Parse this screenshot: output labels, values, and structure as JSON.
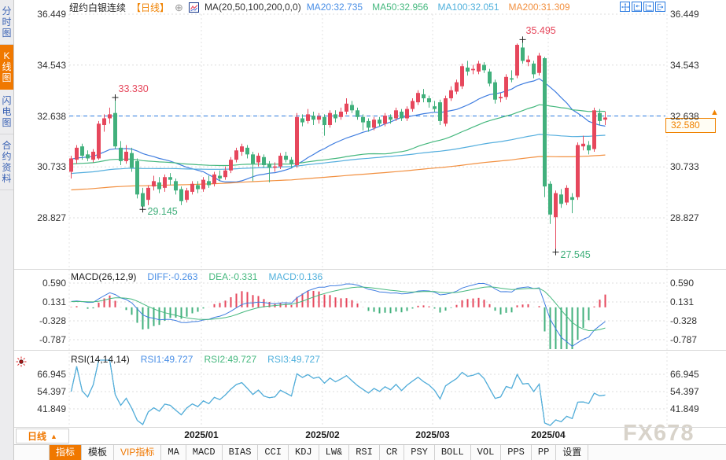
{
  "header": {
    "symbol": "纽约白银连续",
    "period_tag": "【日线】",
    "add_icon_glyph": "⊕",
    "ma_formula": "MA(20,50,100,200,0,0)",
    "ma_values": [
      {
        "text": "MA20:32.735",
        "color": "#4a8fe6"
      },
      {
        "text": "MA50:32.956",
        "color": "#45b87e"
      },
      {
        "text": "MA100:32.051",
        "color": "#4fb0dc"
      },
      {
        "text": "MA200:31.309",
        "color": "#f29040"
      }
    ],
    "window_icons": [
      "crosshair-icon",
      "compress-icon",
      "expand-icon",
      "pan-right-icon"
    ]
  },
  "sidebar": {
    "tabs": [
      {
        "label": "分时图",
        "active": false
      },
      {
        "label": "K线图",
        "active": true
      },
      {
        "label": "闪电图",
        "active": false
      },
      {
        "label": "合约资料",
        "active": false
      }
    ]
  },
  "main_chart": {
    "y_ticks": [
      "36.449",
      "34.543",
      "32.638",
      "30.733",
      "28.827"
    ],
    "last_price": "32.580",
    "arrow_glyph": "▲"
  },
  "macd_panel": {
    "title": "MACD(26,12,9)",
    "values": [
      {
        "text": "DIFF:-0.263",
        "color": "#4a8fe6"
      },
      {
        "text": "DEA:-0.331",
        "color": "#45b87e"
      },
      {
        "text": "MACD:0.136",
        "color": "#4fb0dc"
      }
    ],
    "y_ticks": [
      "0.590",
      "0.131",
      "-0.328",
      "-0.787"
    ]
  },
  "rsi_panel": {
    "title": "RSI(14,14,14)",
    "values": [
      {
        "text": "RSI1:49.727",
        "color": "#4a8fe6"
      },
      {
        "text": "RSI2:49.727",
        "color": "#45b87e"
      },
      {
        "text": "RSI3:49.727",
        "color": "#4fb0dc"
      }
    ],
    "y_ticks": [
      "66.945",
      "54.397",
      "41.849"
    ]
  },
  "x_axis": {
    "period_label": "日线",
    "dropdown_glyph": "▲",
    "dates": [
      "2025/01",
      "2025/02",
      "2025/03",
      "2025/04"
    ]
  },
  "toolbar": {
    "items": [
      {
        "label": "指标",
        "state": "active"
      },
      {
        "label": "模板"
      },
      {
        "label": "VIP指标",
        "state": "vip"
      },
      {
        "label": "MA"
      },
      {
        "label": "MACD"
      },
      {
        "label": "BIAS"
      },
      {
        "label": "CCI"
      },
      {
        "label": "KDJ"
      },
      {
        "label": "LW&"
      },
      {
        "label": "RSI"
      },
      {
        "label": "CR"
      },
      {
        "label": "PSY"
      },
      {
        "label": "BOLL"
      },
      {
        "label": "VOL"
      },
      {
        "label": "PPS"
      },
      {
        "label": "PP"
      },
      {
        "label": "设置"
      }
    ]
  },
  "watermark": "FX678",
  "colors": {
    "up": "#e6475c",
    "down": "#41b07c",
    "ma20": "#3f7de0",
    "ma50": "#45b87e",
    "ma100": "#54aede",
    "ma200": "#f29040",
    "accent": "#f07800",
    "price_line": "#2a7ae0",
    "grid": "#dcdcdc"
  },
  "chart_data": {
    "type": "candlestick",
    "title": "纽约白银连续 日线",
    "x_labels": [
      "2025/01",
      "2025/02",
      "2025/03",
      "2025/04"
    ],
    "month_start_indices": [
      24,
      46,
      66,
      87
    ],
    "y_axis_main": [
      36.449,
      34.543,
      32.638,
      30.733,
      28.827
    ],
    "candles_ohlc": [
      [
        30.55,
        31.15,
        30.3,
        31.05
      ],
      [
        31.0,
        31.55,
        30.85,
        31.45
      ],
      [
        31.5,
        31.6,
        31.0,
        31.15
      ],
      [
        31.2,
        31.35,
        30.95,
        31.05
      ],
      [
        31.0,
        31.4,
        30.9,
        31.3
      ],
      [
        31.05,
        32.45,
        31.0,
        32.35
      ],
      [
        32.3,
        32.7,
        32.05,
        32.55
      ],
      [
        32.55,
        32.95,
        32.35,
        32.7
      ],
      [
        32.75,
        33.33,
        31.4,
        31.5
      ],
      [
        31.45,
        31.7,
        30.8,
        30.95
      ],
      [
        30.95,
        31.55,
        30.85,
        31.3
      ],
      [
        31.25,
        31.45,
        30.55,
        30.7
      ],
      [
        30.95,
        31.05,
        29.55,
        29.7
      ],
      [
        29.75,
        29.95,
        29.145,
        29.25
      ],
      [
        29.5,
        30.05,
        29.3,
        29.95
      ],
      [
        30.0,
        30.4,
        29.85,
        30.2
      ],
      [
        30.15,
        30.35,
        29.75,
        29.9
      ],
      [
        29.95,
        30.45,
        29.8,
        30.35
      ],
      [
        30.35,
        30.5,
        30.05,
        30.25
      ],
      [
        30.2,
        30.3,
        29.7,
        29.85
      ],
      [
        29.9,
        30.0,
        29.3,
        29.45
      ],
      [
        29.5,
        29.95,
        29.4,
        29.85
      ],
      [
        29.8,
        30.2,
        29.7,
        30.1
      ],
      [
        30.05,
        30.2,
        29.75,
        29.9
      ],
      [
        29.9,
        30.35,
        29.8,
        30.25
      ],
      [
        30.2,
        30.4,
        29.95,
        30.05
      ],
      [
        30.1,
        30.55,
        30.0,
        30.45
      ],
      [
        30.4,
        30.6,
        30.2,
        30.3
      ],
      [
        30.35,
        30.75,
        30.25,
        30.6
      ],
      [
        30.6,
        31.1,
        30.5,
        31.0
      ],
      [
        31.0,
        31.45,
        30.9,
        31.35
      ],
      [
        31.3,
        31.6,
        31.15,
        31.5
      ],
      [
        31.45,
        31.55,
        31.05,
        31.2
      ],
      [
        31.2,
        31.3,
        30.2,
        30.85
      ],
      [
        30.9,
        31.25,
        30.75,
        31.15
      ],
      [
        31.1,
        31.2,
        30.7,
        30.8
      ],
      [
        30.85,
        30.95,
        30.15,
        30.7
      ],
      [
        30.7,
        30.9,
        30.55,
        30.75
      ],
      [
        30.75,
        31.25,
        30.65,
        31.15
      ],
      [
        31.15,
        31.3,
        30.9,
        31.0
      ],
      [
        31.0,
        31.1,
        30.7,
        30.85
      ],
      [
        30.8,
        32.75,
        30.7,
        32.6
      ],
      [
        32.55,
        32.7,
        32.25,
        32.4
      ],
      [
        32.45,
        32.9,
        32.35,
        32.7
      ],
      [
        32.65,
        32.8,
        32.3,
        32.5
      ],
      [
        32.5,
        32.75,
        32.35,
        32.62
      ],
      [
        32.6,
        32.7,
        31.9,
        32.3
      ],
      [
        32.3,
        32.85,
        32.2,
        32.75
      ],
      [
        32.7,
        32.85,
        32.4,
        32.55
      ],
      [
        32.6,
        32.95,
        32.5,
        32.8
      ],
      [
        32.8,
        33.3,
        32.7,
        33.1
      ],
      [
        33.05,
        33.2,
        32.75,
        32.85
      ],
      [
        32.85,
        32.95,
        32.5,
        32.6
      ],
      [
        32.6,
        32.7,
        32.1,
        32.4
      ],
      [
        32.45,
        32.55,
        32.05,
        32.2
      ],
      [
        32.2,
        32.6,
        32.1,
        32.5
      ],
      [
        32.5,
        32.6,
        32.25,
        32.35
      ],
      [
        32.35,
        32.75,
        32.25,
        32.65
      ],
      [
        32.6,
        32.7,
        32.35,
        32.5
      ],
      [
        32.55,
        32.95,
        32.45,
        32.85
      ],
      [
        32.8,
        32.9,
        32.45,
        32.55
      ],
      [
        32.55,
        33.0,
        32.45,
        32.9
      ],
      [
        32.9,
        33.3,
        32.8,
        33.2
      ],
      [
        33.15,
        33.6,
        33.05,
        33.5
      ],
      [
        33.45,
        33.65,
        33.15,
        33.3
      ],
      [
        33.3,
        33.4,
        32.95,
        33.15
      ],
      [
        33.0,
        33.2,
        32.8,
        32.9
      ],
      [
        33.15,
        33.25,
        32.3,
        32.45
      ],
      [
        32.35,
        33.4,
        32.25,
        33.3
      ],
      [
        33.3,
        33.75,
        33.2,
        33.6
      ],
      [
        33.55,
        34.0,
        33.45,
        33.9
      ],
      [
        33.75,
        34.6,
        33.65,
        34.5
      ],
      [
        34.45,
        34.7,
        34.15,
        34.3
      ],
      [
        34.35,
        34.55,
        34.2,
        34.4
      ],
      [
        34.3,
        34.7,
        34.2,
        34.6
      ],
      [
        34.55,
        34.65,
        34.25,
        34.35
      ],
      [
        34.3,
        34.4,
        33.75,
        33.85
      ],
      [
        33.9,
        34.0,
        33.1,
        33.25
      ],
      [
        33.3,
        33.5,
        33.15,
        33.35
      ],
      [
        33.35,
        34.2,
        33.25,
        34.1
      ],
      [
        34.05,
        34.35,
        33.9,
        34.0
      ],
      [
        34.15,
        35.35,
        34.05,
        35.3
      ],
      [
        35.2,
        35.495,
        34.6,
        34.7
      ],
      [
        34.65,
        34.9,
        34.5,
        34.75
      ],
      [
        34.6,
        34.7,
        34.05,
        34.2
      ],
      [
        34.25,
        35.0,
        34.15,
        34.9
      ],
      [
        34.8,
        34.85,
        29.6,
        30.0
      ],
      [
        30.1,
        30.2,
        28.6,
        28.95
      ],
      [
        28.85,
        29.85,
        27.545,
        29.75
      ],
      [
        29.7,
        29.9,
        29.2,
        29.35
      ],
      [
        29.4,
        30.05,
        29.3,
        29.95
      ],
      [
        29.6,
        29.75,
        29.0,
        29.5
      ],
      [
        29.6,
        31.65,
        29.5,
        31.55
      ],
      [
        31.5,
        31.9,
        31.35,
        31.6
      ],
      [
        31.55,
        31.7,
        31.2,
        31.35
      ],
      [
        31.4,
        32.95,
        31.3,
        32.85
      ],
      [
        32.75,
        32.9,
        32.3,
        32.45
      ],
      [
        32.5,
        32.8,
        32.3,
        32.58
      ]
    ],
    "ma_overlays": {
      "periods": [
        20,
        50,
        100,
        200
      ],
      "latest": [
        32.735,
        32.956,
        32.051,
        31.309
      ]
    },
    "macd": {
      "params": [
        26,
        12,
        9
      ],
      "latest_diff": -0.263,
      "latest_dea": -0.331,
      "latest_macd": 0.136,
      "y_ticks": [
        0.59,
        0.131,
        -0.328,
        -0.787
      ]
    },
    "rsi": {
      "params": [
        14,
        14,
        14
      ],
      "latest": [
        49.727,
        49.727,
        49.727
      ],
      "y_ticks": [
        66.945,
        54.397,
        41.849
      ]
    },
    "annotations": [
      {
        "index": 8,
        "price": 33.33,
        "label": "33.330",
        "kind": "high"
      },
      {
        "index": 13,
        "price": 29.145,
        "label": "29.145",
        "kind": "low"
      },
      {
        "index": 82,
        "price": 35.495,
        "label": "35.495",
        "kind": "high"
      },
      {
        "index": 88,
        "price": 27.545,
        "label": "27.545",
        "kind": "low"
      }
    ],
    "last_price": 32.58,
    "price_line_level": 32.638
  }
}
